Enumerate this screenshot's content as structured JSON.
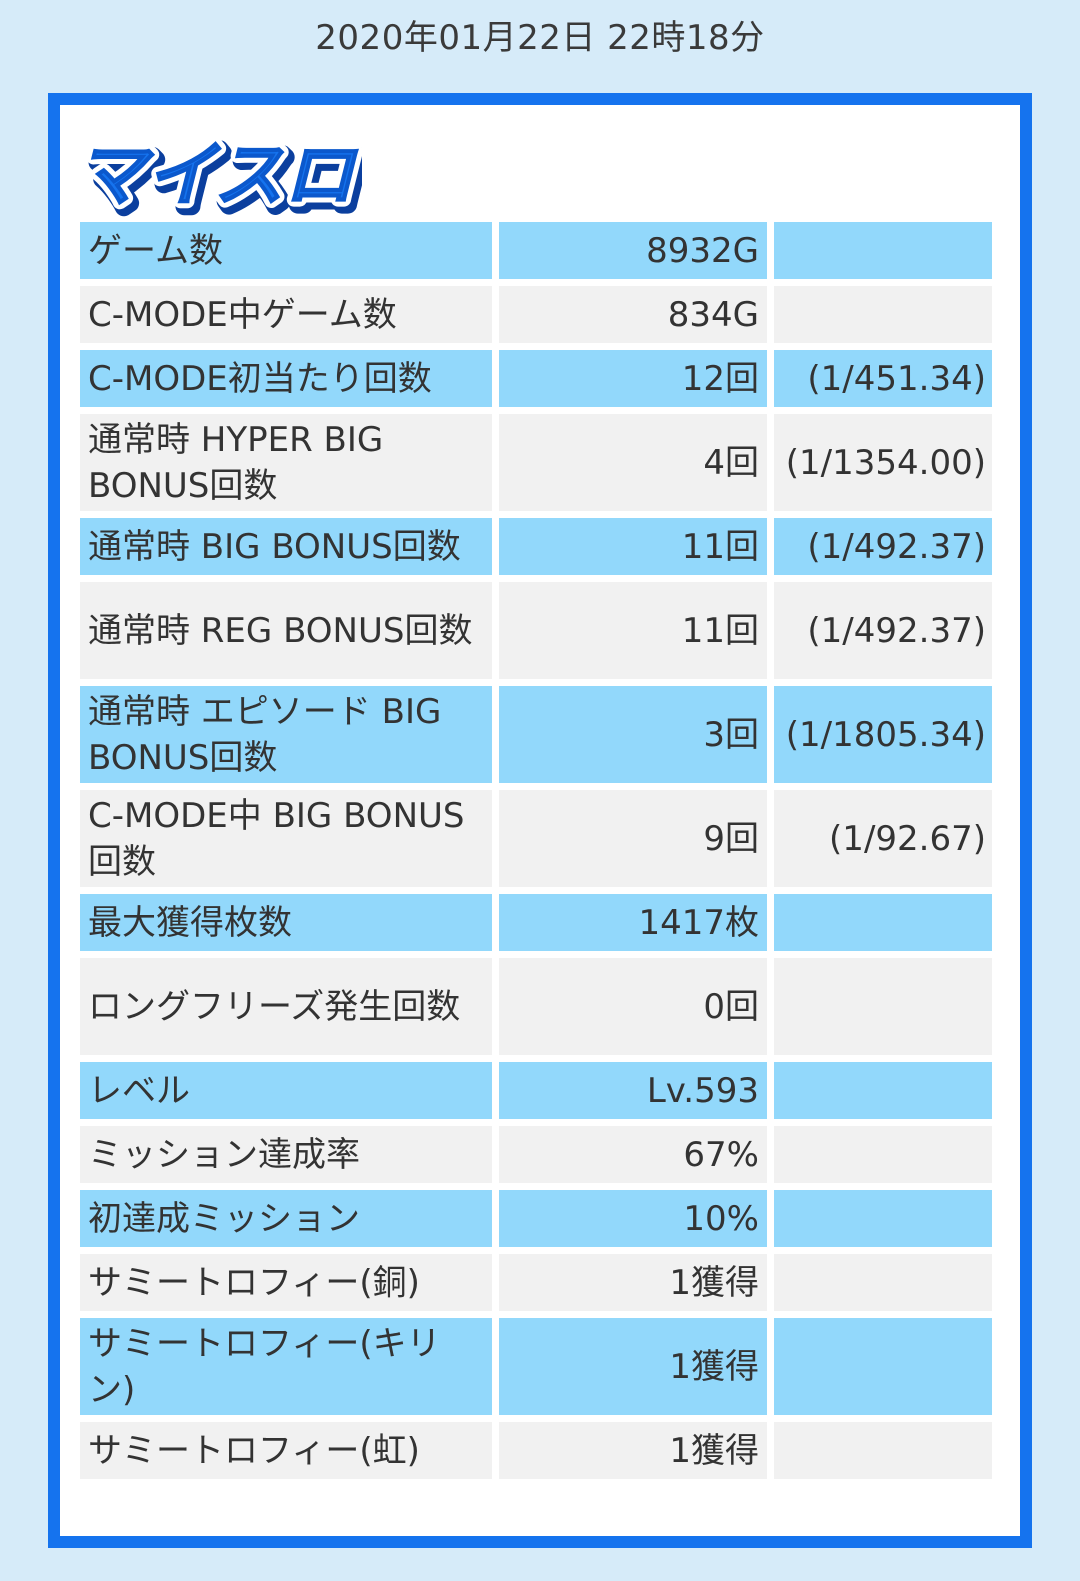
{
  "header": {
    "timestamp": "2020年01月22日 22時18分"
  },
  "logo": {
    "text": "マイスロ",
    "fill_color": "#1573ee",
    "outline_color": "#ffffff",
    "shadow_color": "#0b3f9e"
  },
  "colors": {
    "page_background": "#d6ebf9",
    "panel_border": "#1573ee",
    "row_highlight": "#92d8fb",
    "row_normal": "#f1f1f1"
  },
  "stats": {
    "rows": [
      {
        "label": "ゲーム数",
        "value": "8932G",
        "ratio": ""
      },
      {
        "label": "C-MODE中ゲーム数",
        "value": "834G",
        "ratio": ""
      },
      {
        "label": "C-MODE初当たり回数",
        "value": "12回",
        "ratio": "(1/451.34)"
      },
      {
        "label": "通常時 HYPER BIG BONUS回数",
        "value": "4回",
        "ratio": "(1/1354.00)"
      },
      {
        "label": "通常時 BIG BONUS回数",
        "value": "11回",
        "ratio": "(1/492.37)"
      },
      {
        "label": "通常時 REG BONUS回数",
        "value": "11回",
        "ratio": "(1/492.37)"
      },
      {
        "label": "通常時 エピソード BIG BONUS回数",
        "value": "3回",
        "ratio": "(1/1805.34)"
      },
      {
        "label": "C-MODE中 BIG BONUS回数",
        "value": "9回",
        "ratio": "(1/92.67)"
      },
      {
        "label": "最大獲得枚数",
        "value": "1417枚",
        "ratio": ""
      },
      {
        "label": "ロングフリーズ発生回数",
        "value": "0回",
        "ratio": ""
      },
      {
        "label": "レベル",
        "value": "Lv.593",
        "ratio": ""
      },
      {
        "label": "ミッション達成率",
        "value": "67%",
        "ratio": ""
      },
      {
        "label": "初達成ミッション",
        "value": "10%",
        "ratio": ""
      },
      {
        "label": "サミートロフィー(銅)",
        "value": "1獲得",
        "ratio": ""
      },
      {
        "label": "サミートロフィー(キリン)",
        "value": "1獲得",
        "ratio": ""
      },
      {
        "label": "サミートロフィー(虹)",
        "value": "1獲得",
        "ratio": ""
      }
    ]
  }
}
